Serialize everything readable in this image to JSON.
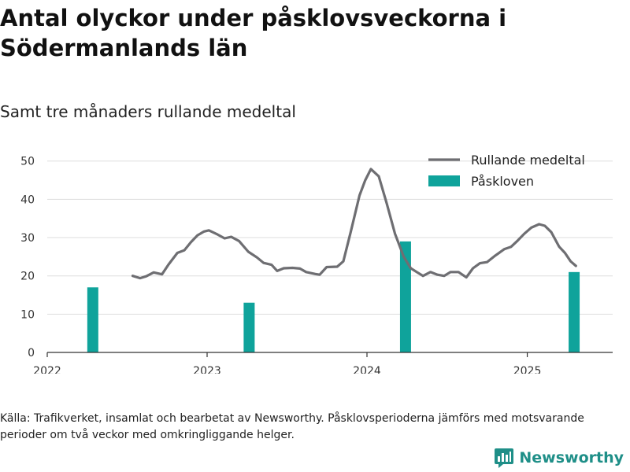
{
  "header": {
    "title": "Antal olyckor under påsklovsveckorna i Södermanlands län",
    "subtitle": "Samt tre månaders rullande medeltal"
  },
  "footer": {
    "note": "Källa: Trafikverket, insamlat och bearbetat av Newsworthy. Påsklovsperioderna jämförs med motsvarande perioder om två veckor med omkringliggande helger.",
    "brand": "Newsworthy"
  },
  "colors": {
    "line": "#6e6e72",
    "bar": "#0fa39b",
    "grid": "#dddddd",
    "axis": "#333333",
    "brand": "#1f8f88"
  },
  "chart_data": {
    "type": "bar+line",
    "x_axis": {
      "type": "date",
      "range": [
        "2022-01-01",
        "2025-07-15"
      ],
      "ticks": [
        "2022",
        "2023",
        "2024",
        "2025"
      ]
    },
    "y_axis": {
      "range": [
        0,
        52
      ],
      "ticks": [
        0,
        10,
        20,
        30,
        40,
        50
      ]
    },
    "grid": "horizontal",
    "legend": {
      "placement": "top-right",
      "entries": [
        {
          "label": "Rullande medeltal",
          "kind": "line"
        },
        {
          "label": "Påskloven",
          "kind": "bar"
        }
      ]
    },
    "bars": {
      "name": "Påskloven",
      "points": [
        {
          "x": "2022-04-15",
          "y": 17
        },
        {
          "x": "2023-04-07",
          "y": 13
        },
        {
          "x": "2024-03-29",
          "y": 29
        },
        {
          "x": "2025-04-18",
          "y": 21
        }
      ]
    },
    "line": {
      "name": "Rullande medeltal",
      "points": [
        {
          "x": "2022-07-15",
          "y": 20.0
        },
        {
          "x": "2022-08-01",
          "y": 19.4
        },
        {
          "x": "2022-08-15",
          "y": 19.9
        },
        {
          "x": "2022-09-01",
          "y": 20.9
        },
        {
          "x": "2022-09-20",
          "y": 20.4
        },
        {
          "x": "2022-10-05",
          "y": 23.0
        },
        {
          "x": "2022-10-25",
          "y": 26.0
        },
        {
          "x": "2022-11-10",
          "y": 26.7
        },
        {
          "x": "2022-11-25",
          "y": 28.8
        },
        {
          "x": "2022-12-10",
          "y": 30.6
        },
        {
          "x": "2022-12-25",
          "y": 31.6
        },
        {
          "x": "2023-01-05",
          "y": 31.9
        },
        {
          "x": "2023-01-25",
          "y": 30.8
        },
        {
          "x": "2023-02-10",
          "y": 29.8
        },
        {
          "x": "2023-02-25",
          "y": 30.2
        },
        {
          "x": "2023-03-15",
          "y": 29.1
        },
        {
          "x": "2023-04-05",
          "y": 26.3
        },
        {
          "x": "2023-04-25",
          "y": 24.8
        },
        {
          "x": "2023-05-10",
          "y": 23.4
        },
        {
          "x": "2023-05-28",
          "y": 22.9
        },
        {
          "x": "2023-06-10",
          "y": 21.3
        },
        {
          "x": "2023-06-25",
          "y": 22.0
        },
        {
          "x": "2023-07-15",
          "y": 22.1
        },
        {
          "x": "2023-08-01",
          "y": 21.9
        },
        {
          "x": "2023-08-15",
          "y": 21.0
        },
        {
          "x": "2023-09-05",
          "y": 20.5
        },
        {
          "x": "2023-09-15",
          "y": 20.3
        },
        {
          "x": "2023-10-01",
          "y": 22.3
        },
        {
          "x": "2023-10-25",
          "y": 22.4
        },
        {
          "x": "2023-11-08",
          "y": 23.8
        },
        {
          "x": "2023-11-25",
          "y": 31.5
        },
        {
          "x": "2023-12-15",
          "y": 41.0
        },
        {
          "x": "2023-12-28",
          "y": 45.0
        },
        {
          "x": "2024-01-10",
          "y": 47.9
        },
        {
          "x": "2024-01-28",
          "y": 46.0
        },
        {
          "x": "2024-02-15",
          "y": 39.0
        },
        {
          "x": "2024-03-05",
          "y": 31.0
        },
        {
          "x": "2024-03-25",
          "y": 25.0
        },
        {
          "x": "2024-04-10",
          "y": 22.0
        },
        {
          "x": "2024-04-25",
          "y": 20.9
        },
        {
          "x": "2024-05-08",
          "y": 20.0
        },
        {
          "x": "2024-05-25",
          "y": 21.0
        },
        {
          "x": "2024-06-10",
          "y": 20.3
        },
        {
          "x": "2024-06-25",
          "y": 20.0
        },
        {
          "x": "2024-07-10",
          "y": 21.0
        },
        {
          "x": "2024-07-28",
          "y": 21.0
        },
        {
          "x": "2024-08-15",
          "y": 19.6
        },
        {
          "x": "2024-08-30",
          "y": 22.0
        },
        {
          "x": "2024-09-15",
          "y": 23.3
        },
        {
          "x": "2024-10-01",
          "y": 23.6
        },
        {
          "x": "2024-10-20",
          "y": 25.3
        },
        {
          "x": "2024-11-10",
          "y": 27.0
        },
        {
          "x": "2024-11-25",
          "y": 27.6
        },
        {
          "x": "2024-12-10",
          "y": 29.2
        },
        {
          "x": "2024-12-25",
          "y": 31.0
        },
        {
          "x": "2025-01-10",
          "y": 32.6
        },
        {
          "x": "2025-01-28",
          "y": 33.5
        },
        {
          "x": "2025-02-10",
          "y": 33.1
        },
        {
          "x": "2025-02-25",
          "y": 31.4
        },
        {
          "x": "2025-03-15",
          "y": 27.6
        },
        {
          "x": "2025-03-28",
          "y": 26.0
        },
        {
          "x": "2025-04-10",
          "y": 23.8
        },
        {
          "x": "2025-04-22",
          "y": 22.6
        }
      ]
    }
  }
}
